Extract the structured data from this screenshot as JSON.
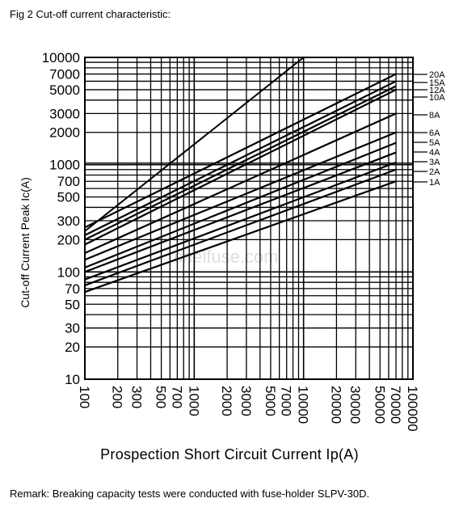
{
  "figure_title": "Fig 2 Cut-off current characteristic:",
  "remark": "Remark: Breaking capacity tests were conducted with fuse-holder SLPV-30D.",
  "watermark": "cnelfuse.com",
  "chart_data": {
    "type": "line",
    "title": "",
    "xlabel": "Prospection Short Circuit Current Ip(A)",
    "ylabel": "Cut-off Current Peak Ic(A)",
    "x_scale": "log",
    "y_scale": "log",
    "xlim": [
      100,
      100000
    ],
    "ylim": [
      10,
      10000
    ],
    "x_ticks": [
      100,
      200,
      300,
      500,
      700,
      1000,
      2000,
      3000,
      5000,
      7000,
      10000,
      20000,
      30000,
      50000,
      70000,
      100000
    ],
    "x_tick_labels": [
      "100",
      "200",
      "300",
      "500",
      "700",
      "1000",
      "2000",
      "3000",
      "5000",
      "7000",
      "10000",
      "20000",
      "30000",
      "50000",
      "70000",
      "100000"
    ],
    "y_ticks": [
      10,
      20,
      30,
      50,
      70,
      100,
      200,
      300,
      500,
      700,
      1000,
      2000,
      3000,
      5000,
      7000,
      10000
    ],
    "y_tick_labels": [
      "10",
      "20",
      "30",
      "50",
      "70",
      "100",
      "200",
      "300",
      "500",
      "700",
      "1000",
      "2000",
      "3000",
      "5000",
      "7000",
      "10000"
    ],
    "grid": true,
    "reference_line": {
      "x": [
        100,
        10000
      ],
      "y": [
        240,
        10000
      ]
    },
    "series": [
      {
        "name": "20A",
        "x": [
          100,
          70000
        ],
        "y": [
          260,
          7000
        ]
      },
      {
        "name": "15A",
        "x": [
          100,
          70000
        ],
        "y": [
          220,
          6000
        ]
      },
      {
        "name": "12A",
        "x": [
          100,
          70000
        ],
        "y": [
          200,
          5400
        ]
      },
      {
        "name": "10A",
        "x": [
          100,
          70000
        ],
        "y": [
          180,
          5000
        ]
      },
      {
        "name": "8A",
        "x": [
          100,
          70000
        ],
        "y": [
          150,
          3000
        ]
      },
      {
        "name": "6A",
        "x": [
          100,
          70000
        ],
        "y": [
          130,
          2000
        ]
      },
      {
        "name": "5A",
        "x": [
          100,
          70000
        ],
        "y": [
          110,
          1600
        ]
      },
      {
        "name": "4A",
        "x": [
          100,
          70000
        ],
        "y": [
          100,
          1300
        ]
      },
      {
        "name": "3A",
        "x": [
          100,
          70000
        ],
        "y": [
          85,
          1050
        ]
      },
      {
        "name": "2A",
        "x": [
          100,
          70000
        ],
        "y": [
          75,
          900
        ]
      },
      {
        "name": "1A",
        "x": [
          100,
          70000
        ],
        "y": [
          65,
          700
        ]
      }
    ]
  }
}
